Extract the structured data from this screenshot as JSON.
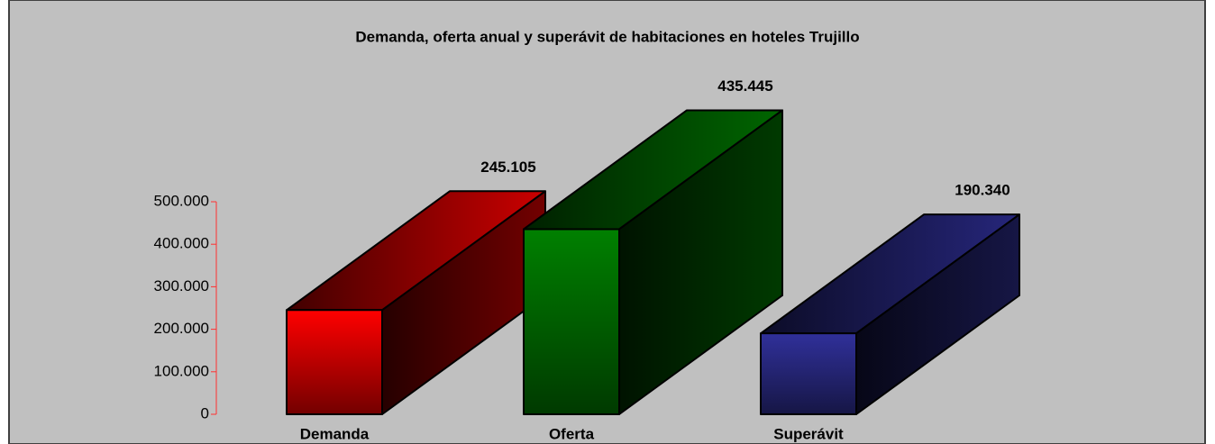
{
  "chart_data": {
    "type": "bar3d",
    "title": "Demanda, oferta anual y superávit de habitaciones en hoteles Trujillo",
    "categories": [
      "Demanda",
      "Oferta",
      "Superávit"
    ],
    "values": [
      245105,
      435445,
      190340
    ],
    "value_labels": [
      "245.105",
      "435.445",
      "190.340"
    ],
    "colors": [
      "#ff0000",
      "#008000",
      "#30309a"
    ],
    "ylim": [
      0,
      500000
    ],
    "yticks": [
      0,
      {
        "value": 100000,
        "label": "100.000"
      },
      {
        "value": 200000,
        "label": "200.000"
      },
      {
        "value": 300000,
        "label": "300.000"
      },
      {
        "value": 400000,
        "label": "400.000"
      },
      {
        "value": 500000,
        "label": "500.000"
      }
    ]
  }
}
